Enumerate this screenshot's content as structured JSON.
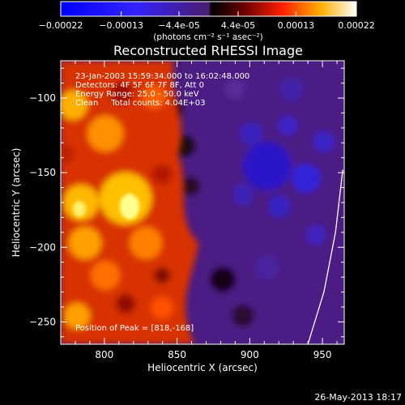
{
  "chart_data": {
    "type": "heatmap",
    "title": "Reconstructed RHESSI Image",
    "xlabel": "Heliocentric X (arcsec)",
    "ylabel": "Heliocentric Y (arcsec)",
    "xlim": [
      770,
      965
    ],
    "ylim": [
      -265,
      -75
    ],
    "x_ticks": [
      800,
      850,
      900,
      950
    ],
    "y_ticks": [
      -100,
      -150,
      -200,
      -250
    ],
    "colorbar": {
      "tick_labels": [
        "-0.00022",
        "-0.00013",
        "-4.4e-05",
        "4.4e-05",
        "0.00013",
        "0.00022"
      ],
      "tick_values": [
        -0.00022,
        -0.00013,
        -4.4e-05,
        4.4e-05,
        0.00013,
        0.00022
      ],
      "range": [
        -0.00022,
        0.00022
      ],
      "unit_label": "(photons cm⁻² s⁻¹ asec⁻²)"
    },
    "info_lines": [
      "23-Jan-2003 15:59:34.000 to 16:02:48.000",
      "Detectors: 4F 5F 6F 7F 8F, Att 0",
      "Energy Range: 25.0 - 50.0 keV",
      "Clean     Total counts: 4.04E+03"
    ],
    "peak_text": "Position of Peak = [818,-168]",
    "peak": [
      818,
      -168
    ],
    "limb_curve": [
      [
        940,
        -265
      ],
      [
        951,
        -230
      ],
      [
        959,
        -190
      ],
      [
        964,
        -148
      ]
    ]
  },
  "footer": {
    "date": "26-May-2013 18:17"
  }
}
